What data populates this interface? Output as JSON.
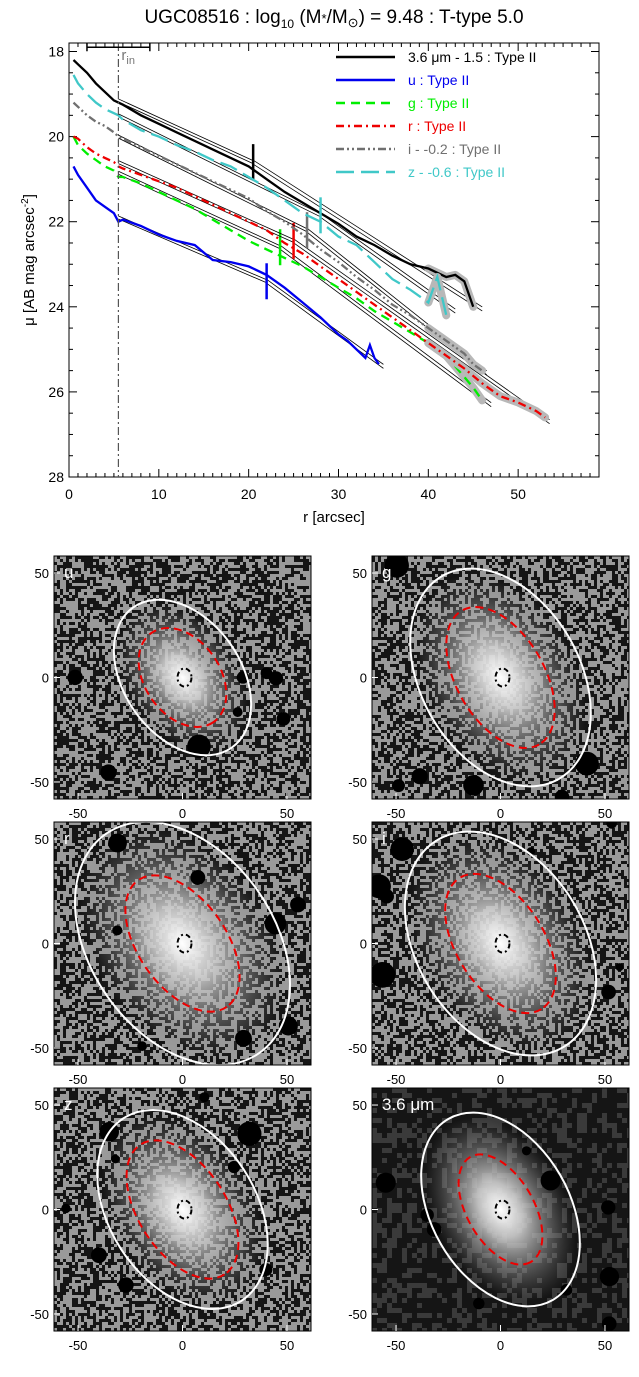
{
  "chart_data": [
    {
      "type": "line",
      "title": "UGC08516 : log10 (M*/M⊙) = 9.48 : T-type 5.0",
      "title_parts": {
        "prefix": "UGC08516 : log",
        "sub10": "10",
        "mid": " (M",
        "star": "*",
        "slash": "/M",
        "sun": "⊙",
        "suffix": ") = 9.48 : T-type 5.0"
      },
      "xlabel": "r [arcsec]",
      "ylabel_parts": {
        "mu": "μ",
        "main": " [AB mag arcsec",
        "sup": "-2",
        "end": "]"
      },
      "xlim": [
        0,
        59
      ],
      "ylim": [
        28,
        17.8
      ],
      "inverted_y": true,
      "xticks": [
        0,
        10,
        20,
        30,
        40,
        50
      ],
      "yticks": [
        18,
        20,
        22,
        24,
        26,
        28
      ],
      "r_in": 5.5,
      "r_in_label": "r",
      "r_in_sub": "in",
      "psf_bar": [
        2,
        9
      ],
      "psf_bar_y": 17.9,
      "legend_position": "top-right",
      "series": [
        {
          "name": "3.6 μm - 1.5 : Type II",
          "color": "#000000",
          "dash": "solid",
          "x": [
            0.5,
            1,
            2,
            3,
            4,
            5,
            6,
            8,
            10,
            12,
            14,
            16,
            18,
            20,
            22,
            24,
            26,
            28,
            30,
            32,
            34,
            36,
            38,
            40,
            41,
            42,
            43,
            44,
            45
          ],
          "y": [
            18.2,
            18.3,
            18.5,
            18.75,
            18.95,
            19.15,
            19.25,
            19.5,
            19.7,
            19.9,
            20.1,
            20.3,
            20.5,
            20.7,
            21.0,
            21.3,
            21.55,
            21.8,
            22.05,
            22.35,
            22.55,
            22.8,
            23.0,
            23.1,
            23.2,
            23.3,
            23.25,
            23.4,
            24.0
          ],
          "break_r": 20.5,
          "fit_inner": [
            [
              5.5,
              19.15
            ],
            [
              20.5,
              20.6
            ]
          ],
          "fit_outer": [
            [
              20.5,
              20.6
            ],
            [
              46,
              24.05
            ]
          ]
        },
        {
          "name": "u : Type II",
          "color": "#0000ee",
          "dash": "solid",
          "x": [
            0.5,
            1,
            2,
            3,
            4,
            5,
            5.5,
            6,
            8,
            10,
            12,
            14,
            16,
            18,
            20,
            22,
            24,
            26,
            28,
            30,
            31,
            32,
            33,
            33.5,
            34,
            34.5
          ],
          "y": [
            20.7,
            20.9,
            21.2,
            21.5,
            21.65,
            21.8,
            22.0,
            21.95,
            22.1,
            22.3,
            22.45,
            22.55,
            22.9,
            22.95,
            23.05,
            23.25,
            23.55,
            23.9,
            24.25,
            24.65,
            24.8,
            25.0,
            25.2,
            24.9,
            25.2,
            25.35
          ],
          "break_r": 22,
          "fit_inner": [
            [
              5.5,
              21.9
            ],
            [
              22,
              23.4
            ]
          ],
          "fit_outer": [
            [
              22,
              23.4
            ],
            [
              35,
              25.4
            ]
          ]
        },
        {
          "name": "g : Type II",
          "color": "#00ee00",
          "dash": "dash",
          "x": [
            0.5,
            1,
            2,
            3,
            4,
            5,
            5.5,
            6,
            8,
            10,
            12,
            14,
            16,
            18,
            20,
            22,
            24,
            26,
            28,
            30,
            32,
            34,
            36,
            38,
            40,
            42,
            43,
            44,
            45,
            46
          ],
          "y": [
            20.0,
            20.2,
            20.4,
            20.55,
            20.7,
            20.8,
            20.95,
            20.95,
            21.1,
            21.3,
            21.5,
            21.7,
            21.95,
            22.2,
            22.45,
            22.65,
            22.85,
            23.05,
            23.3,
            23.55,
            23.8,
            24.1,
            24.35,
            24.6,
            24.85,
            25.15,
            25.4,
            25.65,
            25.9,
            26.2
          ],
          "break_r": 23.5,
          "fit_inner": [
            [
              5.5,
              20.85
            ],
            [
              23.5,
              22.6
            ]
          ],
          "fit_outer": [
            [
              23.5,
              22.6
            ],
            [
              47,
              26.3
            ]
          ]
        },
        {
          "name": "r : Type II",
          "color": "#ee0000",
          "dash": "dashdot",
          "x": [
            0.5,
            1,
            2,
            3,
            4,
            5,
            5.5,
            6,
            8,
            10,
            12,
            14,
            16,
            18,
            20,
            22,
            24,
            26,
            28,
            30,
            32,
            34,
            36,
            38,
            40,
            42,
            44,
            46,
            48,
            50,
            52,
            53
          ],
          "y": [
            20.0,
            20.05,
            20.25,
            20.4,
            20.5,
            20.6,
            20.7,
            20.75,
            20.9,
            21.05,
            21.2,
            21.4,
            21.6,
            21.8,
            22.0,
            22.2,
            22.5,
            22.75,
            23.05,
            23.35,
            23.65,
            23.95,
            24.25,
            24.55,
            24.85,
            25.15,
            25.45,
            25.8,
            26.1,
            26.25,
            26.45,
            26.6
          ],
          "break_r": 25,
          "fit_inner": [
            [
              5.5,
              20.6
            ],
            [
              25,
              22.45
            ]
          ],
          "fit_outer": [
            [
              25,
              22.45
            ],
            [
              53.5,
              26.7
            ]
          ]
        },
        {
          "name": "i - -0.2 : Type II",
          "color": "#707070",
          "dash": "dashdotdot",
          "x": [
            0.5,
            1,
            2,
            3,
            4,
            5,
            5.5,
            6,
            8,
            10,
            12,
            14,
            16,
            18,
            20,
            22,
            24,
            26,
            28,
            30,
            32,
            34,
            36,
            38,
            40,
            42,
            44,
            45,
            46
          ],
          "y": [
            19.2,
            19.3,
            19.5,
            19.65,
            19.75,
            19.9,
            20.0,
            20.05,
            20.25,
            20.45,
            20.65,
            20.85,
            21.05,
            21.25,
            21.45,
            21.75,
            22.0,
            22.3,
            22.65,
            22.95,
            23.3,
            23.6,
            23.95,
            24.2,
            24.5,
            24.8,
            25.1,
            25.35,
            25.5
          ],
          "break_r": 26.5,
          "fit_inner": [
            [
              5.5,
              20.0
            ],
            [
              26.5,
              22.2
            ]
          ],
          "fit_outer": [
            [
              26.5,
              22.2
            ],
            [
              46.5,
              25.55
            ]
          ]
        },
        {
          "name": "z - -0.6 : Type II",
          "color": "#40c8c8",
          "dash": "longdash",
          "x": [
            0.5,
            1,
            2,
            3,
            4,
            5,
            5.5,
            6,
            8,
            10,
            12,
            14,
            16,
            18,
            20,
            22,
            24,
            26,
            28,
            30,
            32,
            34,
            36,
            38,
            40,
            41,
            42
          ],
          "y": [
            18.55,
            18.75,
            19.0,
            19.2,
            19.35,
            19.45,
            19.5,
            19.6,
            19.85,
            20.0,
            20.2,
            20.35,
            20.55,
            20.7,
            20.95,
            21.2,
            21.5,
            21.8,
            22.0,
            22.35,
            22.55,
            22.95,
            23.35,
            23.6,
            23.9,
            23.3,
            24.2
          ],
          "break_r": 28,
          "fit_inner": [
            [
              5.5,
              19.5
            ],
            [
              28,
              21.85
            ]
          ],
          "fit_outer": [
            [
              28,
              21.85
            ],
            [
              43,
              24.1
            ]
          ]
        }
      ]
    },
    {
      "type": "image-panels",
      "tick_values": [
        -50,
        0,
        50
      ],
      "panels": [
        {
          "label": "u",
          "inner_ellipse": [
            26,
            18
          ],
          "outer_ellipse": [
            41,
            28
          ],
          "angle": 55,
          "texture": "noisy"
        },
        {
          "label": "g",
          "inner_ellipse": [
            37,
            21
          ],
          "outer_ellipse": [
            56,
            38
          ],
          "angle": 60,
          "texture": "noisy"
        },
        {
          "label": "r",
          "inner_ellipse": [
            37,
            21
          ],
          "outer_ellipse": [
            64,
            44
          ],
          "angle": 55,
          "texture": "noisy"
        },
        {
          "label": "i",
          "inner_ellipse": [
            37,
            21
          ],
          "outer_ellipse": [
            58,
            40
          ],
          "angle": 58,
          "texture": "noisy"
        },
        {
          "label": "z",
          "inner_ellipse": [
            37,
            21
          ],
          "outer_ellipse": [
            52,
            35
          ],
          "angle": 57,
          "texture": "noisy"
        },
        {
          "label": "3.6 μm",
          "inner_ellipse": [
            29,
            16
          ],
          "outer_ellipse": [
            50,
            33
          ],
          "angle": 60,
          "texture": "coarse"
        }
      ]
    }
  ]
}
